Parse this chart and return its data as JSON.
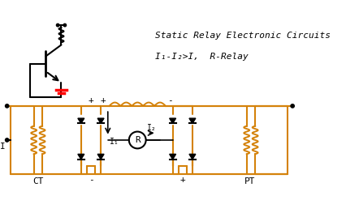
{
  "title": "Static Relay Electronic Circuits",
  "formula": "I₁-I₂>I,  R-Relay",
  "circuit_color": "#D4820A",
  "component_color": "black",
  "background": "white",
  "label_CT": "CT",
  "label_PT": "PT",
  "label_I": "I",
  "label_I1": "I₁",
  "label_I2": "I₂",
  "label_R": "R",
  "label_plus": "+",
  "label_minus": "-"
}
